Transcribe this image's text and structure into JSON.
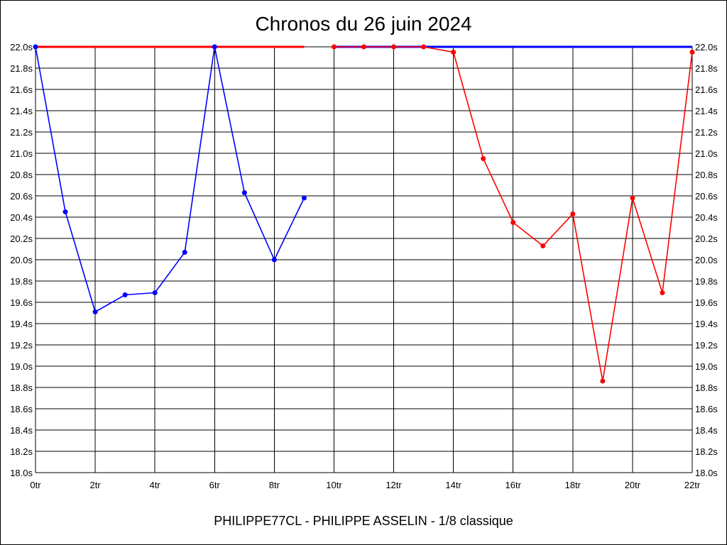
{
  "title": "Chronos du 26 juin 2024",
  "footer": "PHILIPPE77CL - PHILIPPE ASSELIN - 1/8 classique",
  "chart_data": {
    "type": "line",
    "title": "Chronos du 26 juin 2024",
    "xlabel": "",
    "ylabel": "",
    "xlim": [
      0,
      22
    ],
    "ylim": [
      18.0,
      22.0
    ],
    "grid": true,
    "x_ticks": [
      0,
      2,
      4,
      6,
      8,
      10,
      12,
      14,
      16,
      18,
      20,
      22
    ],
    "x_tick_labels": [
      "0tr",
      "2tr",
      "4tr",
      "6tr",
      "8tr",
      "10tr",
      "12tr",
      "14tr",
      "16tr",
      "18tr",
      "20tr",
      "22tr"
    ],
    "y_ticks": [
      18.0,
      18.2,
      18.4,
      18.6,
      18.8,
      19.0,
      19.2,
      19.4,
      19.6,
      19.8,
      20.0,
      20.2,
      20.4,
      20.6,
      20.8,
      21.0,
      21.2,
      21.4,
      21.6,
      21.8,
      22.0
    ],
    "y_tick_labels": [
      "18.0s",
      "18.2s",
      "18.4s",
      "18.6s",
      "18.8s",
      "19.0s",
      "19.2s",
      "19.4s",
      "19.6s",
      "19.8s",
      "20.0s",
      "20.2s",
      "20.4s",
      "20.6s",
      "20.8s",
      "21.0s",
      "21.2s",
      "21.4s",
      "21.6s",
      "21.8s",
      "22.0s"
    ],
    "y_axes": [
      "left",
      "right"
    ],
    "series": [
      {
        "color": "#0000ff",
        "x": [
          0,
          1,
          2,
          3,
          4,
          5,
          6,
          7,
          8,
          9
        ],
        "y": [
          22.0,
          20.45,
          19.51,
          19.67,
          19.69,
          20.07,
          22.0,
          20.63,
          20.0,
          20.58
        ]
      },
      {
        "color": "#ff0000",
        "x": [
          10,
          11,
          12,
          13,
          14,
          15,
          16,
          17,
          18,
          19,
          20,
          21,
          22
        ],
        "y": [
          22.0,
          22.0,
          22.0,
          22.0,
          21.95,
          20.95,
          20.35,
          20.13,
          20.43,
          18.86,
          20.58,
          19.69,
          21.95
        ]
      }
    ],
    "reference_lines": [
      {
        "color": "#ff0000",
        "x": [
          0,
          9
        ],
        "y": [
          22.0,
          22.0
        ]
      },
      {
        "color": "#0000ff",
        "x": [
          10,
          22
        ],
        "y": [
          22.0,
          22.0
        ]
      }
    ]
  }
}
